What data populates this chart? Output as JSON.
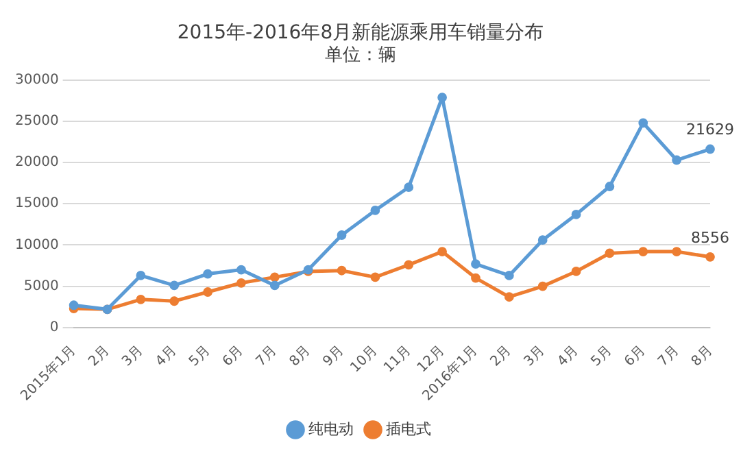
{
  "chart_data": {
    "type": "line",
    "title": "2015年-2016年8月新能源乘用车销量分布",
    "subtitle": "单位：辆",
    "categories": [
      "2015年1月",
      "2月",
      "3月",
      "4月",
      "5月",
      "6月",
      "7月",
      "8月",
      "9月",
      "10月",
      "11月",
      "12月",
      "2016年1月",
      "2月",
      "3月",
      "4月",
      "5月",
      "6月",
      "7月",
      "8月"
    ],
    "series": [
      {
        "name": "纯电动",
        "color": "#5b9bd5",
        "values": [
          2700,
          2200,
          6300,
          5100,
          6500,
          7000,
          5100,
          7000,
          11200,
          14200,
          17000,
          27900,
          7700,
          6300,
          10600,
          13700,
          17100,
          24800,
          20300,
          21629
        ],
        "value_labels": [
          null,
          null,
          null,
          null,
          null,
          null,
          null,
          null,
          null,
          null,
          null,
          null,
          null,
          null,
          null,
          null,
          null,
          null,
          null,
          "21629"
        ]
      },
      {
        "name": "插电式",
        "color": "#ed7d31",
        "values": [
          2300,
          2200,
          3400,
          3200,
          4300,
          5400,
          6100,
          6800,
          6900,
          6100,
          7600,
          9200,
          6000,
          3700,
          5000,
          6800,
          9000,
          9200,
          9200,
          8556
        ],
        "value_labels": [
          null,
          null,
          null,
          null,
          null,
          null,
          null,
          null,
          null,
          null,
          null,
          null,
          null,
          null,
          null,
          null,
          null,
          null,
          null,
          "8556"
        ]
      }
    ],
    "ylim": [
      0,
      30000
    ],
    "yticks": [
      0,
      5000,
      10000,
      15000,
      20000,
      25000,
      30000
    ],
    "grid": "y",
    "legend": "bottom",
    "marker": "circle",
    "line_style": "solid"
  }
}
